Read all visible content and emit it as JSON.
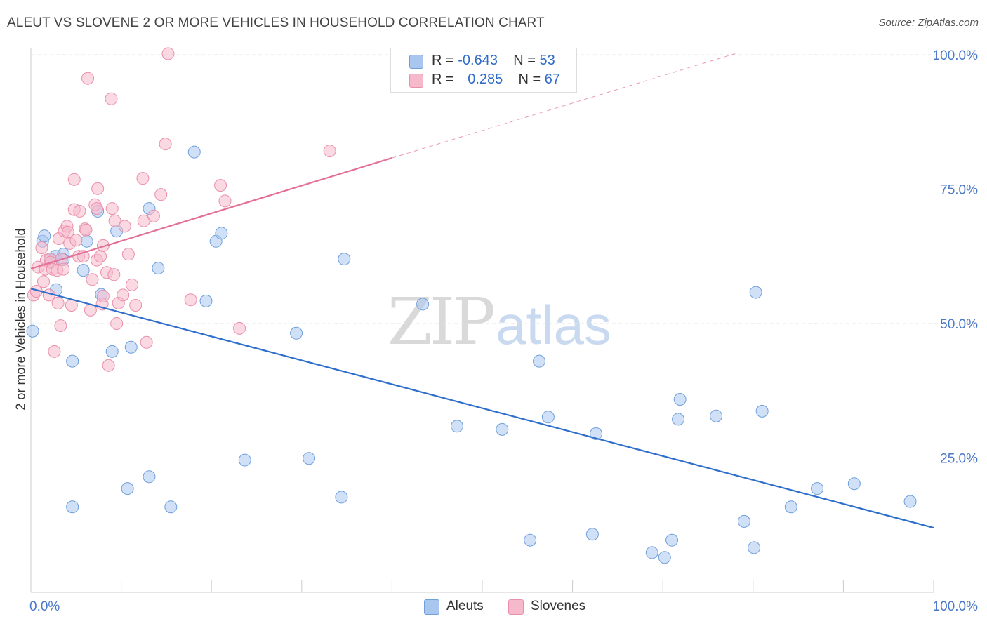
{
  "title": "ALEUT VS SLOVENE 2 OR MORE VEHICLES IN HOUSEHOLD CORRELATION CHART",
  "source": "Source: ZipAtlas.com",
  "watermark": {
    "zip": "ZIP",
    "atlas": "atlas"
  },
  "legend": {
    "rows": [
      {
        "r_label": "R =",
        "r_value": "-0.643",
        "n_label": "N =",
        "n_value": "53",
        "color": "#a9c6ee"
      },
      {
        "r_label": "R =",
        "r_value": "0.285",
        "n_label": "N =",
        "n_value": "67",
        "color": "#f6b9cc"
      }
    ]
  },
  "bottom_legend": [
    {
      "label": "Aleuts",
      "color": "#a9c6ee"
    },
    {
      "label": "Slovenes",
      "color": "#f6b9cc"
    }
  ],
  "chart_data": {
    "type": "scatter",
    "title": "ALEUT VS SLOVENE 2 OR MORE VEHICLES IN HOUSEHOLD CORRELATION CHART",
    "xlabel": "",
    "ylabel": "2 or more Vehicles in Household",
    "xlim": [
      0,
      100
    ],
    "ylim": [
      0,
      100
    ],
    "x_tick_labels": [
      {
        "value": 0,
        "label": "0.0%"
      },
      {
        "value": 100,
        "label": "100.0%"
      }
    ],
    "y_tick_labels": [
      {
        "value": 25,
        "label": "25.0%"
      },
      {
        "value": 50,
        "label": "50.0%"
      },
      {
        "value": 75,
        "label": "75.0%"
      },
      {
        "value": 100,
        "label": "100.0%"
      }
    ],
    "grid": "horizontal dashed",
    "legend_position": "top-center",
    "series": [
      {
        "name": "Aleuts",
        "color": "#a9c6ee",
        "stroke": "#6f9fdc",
        "trend_color": "#2f6fcc",
        "trend": {
          "x0": 0,
          "y0": 56.5,
          "x1": 100,
          "y1": 12.0
        },
        "points": [
          [
            0.2,
            48.6
          ],
          [
            1.3,
            65.3
          ],
          [
            1.5,
            66.3
          ],
          [
            2.2,
            62.0
          ],
          [
            2.7,
            62.5
          ],
          [
            2.8,
            56.3
          ],
          [
            3.6,
            62.9
          ],
          [
            3.6,
            61.9
          ],
          [
            4.6,
            15.9
          ],
          [
            4.6,
            43.0
          ],
          [
            5.8,
            59.9
          ],
          [
            6.2,
            65.3
          ],
          [
            7.4,
            70.9
          ],
          [
            7.8,
            55.4
          ],
          [
            9.0,
            44.8
          ],
          [
            9.5,
            67.2
          ],
          [
            10.7,
            19.3
          ],
          [
            11.1,
            45.6
          ],
          [
            13.1,
            21.5
          ],
          [
            13.1,
            71.4
          ],
          [
            14.1,
            60.3
          ],
          [
            15.5,
            15.9
          ],
          [
            18.1,
            81.9
          ],
          [
            19.4,
            54.2
          ],
          [
            20.5,
            65.3
          ],
          [
            21.1,
            66.8
          ],
          [
            23.7,
            24.6
          ],
          [
            29.4,
            48.2
          ],
          [
            30.8,
            24.9
          ],
          [
            34.4,
            17.7
          ],
          [
            34.7,
            62.0
          ],
          [
            43.4,
            53.6
          ],
          [
            47.2,
            30.9
          ],
          [
            52.2,
            30.3
          ],
          [
            55.3,
            9.7
          ],
          [
            56.3,
            43.0
          ],
          [
            57.3,
            32.6
          ],
          [
            62.2,
            10.8
          ],
          [
            62.6,
            29.5
          ],
          [
            68.8,
            7.4
          ],
          [
            70.2,
            6.5
          ],
          [
            71.0,
            9.7
          ],
          [
            71.7,
            32.2
          ],
          [
            71.9,
            35.9
          ],
          [
            75.9,
            32.8
          ],
          [
            79.0,
            13.2
          ],
          [
            80.1,
            8.3
          ],
          [
            80.3,
            55.8
          ],
          [
            81.0,
            33.7
          ],
          [
            84.2,
            15.9
          ],
          [
            87.1,
            19.3
          ],
          [
            91.2,
            20.2
          ],
          [
            97.4,
            16.9
          ]
        ]
      },
      {
        "name": "Slovenes",
        "color": "#f6b9cc",
        "stroke": "#ea8fab",
        "trend_color": "#e46f97",
        "trend": {
          "x0": 0,
          "y0": 60.2,
          "x1": 40,
          "y1": 80.8
        },
        "trend_extension": {
          "x0": 40,
          "y0": 80.8,
          "x1": 78,
          "y1": 100.2
        },
        "points": [
          [
            0.3,
            55.3
          ],
          [
            0.6,
            56.0
          ],
          [
            0.8,
            60.5
          ],
          [
            1.2,
            64.1
          ],
          [
            1.4,
            57.8
          ],
          [
            1.6,
            60.1
          ],
          [
            1.7,
            61.8
          ],
          [
            2.0,
            55.3
          ],
          [
            2.1,
            62.0
          ],
          [
            2.2,
            61.4
          ],
          [
            2.4,
            60.1
          ],
          [
            2.6,
            44.8
          ],
          [
            2.9,
            59.9
          ],
          [
            3.0,
            53.8
          ],
          [
            3.1,
            65.8
          ],
          [
            3.3,
            49.6
          ],
          [
            3.4,
            62.0
          ],
          [
            3.6,
            60.1
          ],
          [
            3.7,
            67.2
          ],
          [
            4.0,
            68.1
          ],
          [
            4.1,
            67.0
          ],
          [
            4.3,
            64.9
          ],
          [
            4.5,
            53.4
          ],
          [
            4.8,
            71.2
          ],
          [
            4.8,
            76.8
          ],
          [
            5.3,
            62.5
          ],
          [
            5.4,
            70.9
          ],
          [
            5.8,
            62.5
          ],
          [
            6.0,
            67.6
          ],
          [
            6.1,
            67.4
          ],
          [
            6.3,
            95.6
          ],
          [
            6.6,
            52.5
          ],
          [
            6.8,
            58.2
          ],
          [
            7.1,
            72.1
          ],
          [
            7.3,
            71.4
          ],
          [
            7.3,
            61.8
          ],
          [
            7.4,
            75.1
          ],
          [
            7.7,
            62.5
          ],
          [
            7.9,
            53.6
          ],
          [
            8.0,
            64.5
          ],
          [
            8.0,
            55.1
          ],
          [
            8.4,
            59.5
          ],
          [
            8.6,
            42.2
          ],
          [
            8.9,
            91.8
          ],
          [
            9.0,
            71.4
          ],
          [
            9.2,
            59.1
          ],
          [
            9.3,
            69.1
          ],
          [
            9.5,
            50.0
          ],
          [
            9.7,
            53.8
          ],
          [
            10.2,
            55.3
          ],
          [
            10.4,
            68.1
          ],
          [
            10.8,
            62.9
          ],
          [
            11.2,
            57.2
          ],
          [
            11.6,
            53.4
          ],
          [
            12.4,
            77.0
          ],
          [
            12.5,
            69.1
          ],
          [
            12.8,
            46.5
          ],
          [
            13.6,
            70.0
          ],
          [
            14.4,
            74.0
          ],
          [
            14.9,
            83.4
          ],
          [
            15.2,
            100.2
          ],
          [
            17.7,
            54.4
          ],
          [
            21.0,
            75.7
          ],
          [
            21.5,
            72.8
          ],
          [
            23.1,
            49.1
          ],
          [
            33.1,
            82.1
          ],
          [
            5.0,
            65.5
          ]
        ]
      }
    ]
  }
}
